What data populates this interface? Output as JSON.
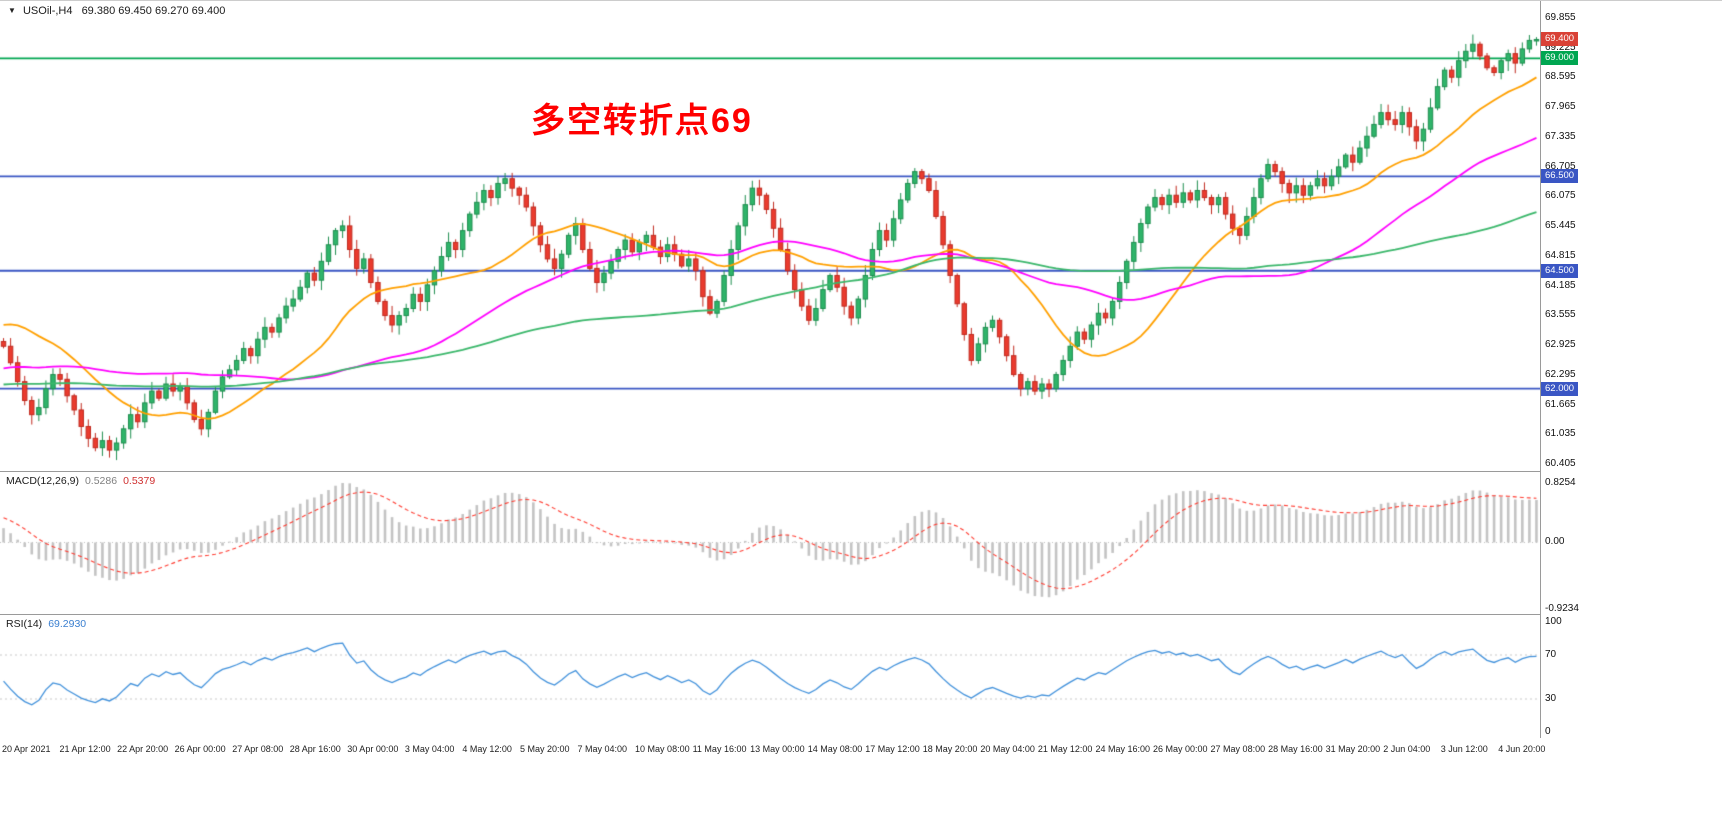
{
  "header": {
    "symbol": "USOil-,H4",
    "ohlc": "69.380 69.450 69.270 69.400",
    "dropdown_icon": "symbol-dropdown"
  },
  "annotation": {
    "text": "多空转折点69",
    "color": "#FF0000"
  },
  "colors": {
    "up": "#2FB46A",
    "up_border": "#1E8E4F",
    "down": "#EA3B2E",
    "down_border": "#C02A1F",
    "ma_fast": "#FFA000",
    "ma_mid": "#FF00FF",
    "ma_slow": "#3BB76B",
    "hline_green": "#00A651",
    "hline_blue": "#3A56C4",
    "price_badge_bg": "#D94136",
    "macd_hist": "#C4C4C4",
    "macd_signal": "#FF3B30",
    "rsi_line": "#4191DB",
    "level_dotted": "#C8C8C8"
  },
  "main_axis": {
    "min": 60.405,
    "max": 69.855,
    "ticks": [
      "69.855",
      "69.225",
      "68.595",
      "67.965",
      "67.335",
      "66.705",
      "66.075",
      "65.445",
      "64.815",
      "64.185",
      "63.555",
      "62.925",
      "62.295",
      "61.665",
      "61.035",
      "60.405"
    ]
  },
  "hlines": [
    {
      "value": 69.0,
      "label": "69.000",
      "color": "#00A651",
      "badge_bg": "#00A651"
    },
    {
      "value": 66.5,
      "label": "66.500",
      "color": "#3A56C4",
      "badge_bg": "#3A56C4"
    },
    {
      "value": 64.5,
      "label": "64.500",
      "color": "#3A56C4",
      "badge_bg": "#3A56C4"
    },
    {
      "value": 62.0,
      "label": "62.000",
      "color": "#3A56C4",
      "badge_bg": "#3A56C4"
    }
  ],
  "price_badge": {
    "value": 69.4,
    "label": "69.400",
    "bg": "#D94136"
  },
  "panels": {
    "macd": {
      "label": "MACD(12,26,9)",
      "value_main": "0.5286",
      "value_signal": "0.5379",
      "axis": [
        {
          "label": "0.8254",
          "value": 0.8254
        },
        {
          "label": "0.00",
          "value": 0
        },
        {
          "label": "-0.9234",
          "value": -0.9234
        }
      ],
      "range": {
        "min": -0.9234,
        "max": 0.8254
      }
    },
    "rsi": {
      "label": "RSI(14)",
      "value": "69.2930",
      "axis": [
        {
          "label": "100",
          "value": 100
        },
        {
          "label": "70",
          "value": 70
        },
        {
          "label": "30",
          "value": 30
        },
        {
          "label": "0",
          "value": 0
        }
      ],
      "levels": [
        70,
        30
      ],
      "range": {
        "min": 0,
        "max": 100
      }
    }
  },
  "time_axis": {
    "labels": [
      "20 Apr 2021",
      "21 Apr 12:00",
      "22 Apr 20:00",
      "26 Apr 00:00",
      "27 Apr 08:00",
      "28 Apr 16:00",
      "30 Apr 00:00",
      "3 May 04:00",
      "4 May 12:00",
      "5 May 20:00",
      "7 May 04:00",
      "10 May 08:00",
      "11 May 16:00",
      "13 May 00:00",
      "14 May 08:00",
      "17 May 12:00",
      "18 May 20:00",
      "20 May 04:00",
      "21 May 12:00",
      "24 May 16:00",
      "26 May 00:00",
      "27 May 08:00",
      "28 May 16:00",
      "31 May 20:00",
      "2 Jun 04:00",
      "3 Jun 12:00",
      "4 Jun 20:00"
    ]
  },
  "chart_data": {
    "type": "candlestick",
    "title": "USOil-,H4",
    "symbol": "USOil",
    "timeframe": "H4",
    "ylim": [
      60.405,
      69.855
    ],
    "last_bar": {
      "open": 69.38,
      "high": 69.45,
      "low": 69.27,
      "close": 69.4
    },
    "moving_averages": [
      {
        "period": 20,
        "color": "#FFA000"
      },
      {
        "period": 50,
        "color": "#FF00FF"
      },
      {
        "period": 100,
        "color": "#3BB76B"
      }
    ],
    "indicators": [
      {
        "type": "MACD",
        "fast": 12,
        "slow": 26,
        "signal": 9,
        "current": [
          0.5286,
          0.5379
        ]
      },
      {
        "type": "RSI",
        "period": 14,
        "current": 69.293
      }
    ],
    "prehistory": [
      61.5,
      61.65,
      61.8,
      61.7,
      61.55,
      61.4,
      61.55,
      61.75,
      61.9,
      61.8,
      61.65,
      61.5,
      61.6,
      61.8,
      61.95,
      61.85,
      61.7,
      61.55,
      61.65,
      61.85,
      62.0,
      61.9,
      61.75,
      61.6,
      61.7,
      61.9,
      62.05,
      61.95,
      61.8,
      61.65,
      61.55,
      61.7,
      61.85,
      61.75,
      61.6,
      61.45,
      61.55,
      61.7,
      61.85,
      61.95,
      61.8,
      61.65,
      61.75,
      61.9,
      62.0,
      61.9,
      61.75,
      61.85,
      61.95,
      61.85,
      61.7,
      61.55,
      61.65,
      61.8,
      61.9,
      61.75,
      61.6,
      61.7,
      61.85,
      61.95,
      61.85,
      61.7,
      61.8,
      61.95,
      62.05,
      61.9,
      61.75,
      61.85,
      62.0,
      61.9,
      61.75,
      61.65,
      61.8,
      61.95,
      61.85,
      61.7,
      61.8,
      61.9,
      62.0,
      61.9,
      62.1,
      62.35,
      62.6,
      62.85,
      63.1,
      63.35,
      63.6,
      63.85,
      64.05,
      64.2,
      64.1,
      63.95,
      63.8,
      63.65,
      63.5,
      63.4,
      63.3,
      63.2,
      63.1,
      63.0
    ],
    "closes": [
      62.9,
      62.55,
      62.15,
      61.75,
      61.45,
      61.6,
      62.0,
      62.3,
      62.2,
      61.85,
      61.55,
      61.2,
      60.95,
      60.75,
      60.9,
      60.7,
      60.85,
      61.15,
      61.45,
      61.3,
      61.7,
      61.95,
      61.8,
      62.1,
      61.95,
      62.05,
      61.7,
      61.35,
      61.15,
      61.5,
      61.95,
      62.25,
      62.4,
      62.6,
      62.85,
      62.7,
      63.05,
      63.3,
      63.2,
      63.5,
      63.75,
      63.9,
      64.15,
      64.45,
      64.3,
      64.7,
      65.05,
      65.35,
      65.45,
      64.95,
      64.55,
      64.75,
      64.25,
      63.85,
      63.55,
      63.35,
      63.55,
      63.7,
      64.0,
      63.85,
      64.2,
      64.5,
      64.8,
      65.1,
      64.95,
      65.35,
      65.7,
      65.95,
      66.2,
      66.05,
      66.35,
      66.45,
      66.25,
      66.1,
      65.85,
      65.45,
      65.05,
      64.75,
      64.55,
      64.85,
      65.25,
      65.5,
      64.95,
      64.55,
      64.25,
      64.45,
      64.7,
      64.95,
      65.15,
      64.9,
      65.1,
      65.25,
      65.0,
      64.8,
      65.05,
      64.85,
      64.6,
      64.75,
      64.5,
      63.95,
      63.6,
      63.85,
      64.4,
      64.95,
      65.45,
      65.9,
      66.25,
      66.1,
      65.8,
      65.4,
      64.95,
      64.5,
      64.1,
      63.75,
      63.45,
      63.7,
      64.1,
      64.4,
      64.15,
      63.75,
      63.5,
      63.9,
      64.4,
      64.95,
      65.35,
      65.15,
      65.6,
      66.0,
      66.35,
      66.6,
      66.45,
      66.2,
      65.65,
      65.05,
      64.4,
      63.8,
      63.15,
      62.6,
      62.95,
      63.3,
      63.45,
      63.1,
      62.7,
      62.3,
      62.0,
      62.15,
      61.95,
      62.1,
      62.0,
      62.3,
      62.6,
      62.9,
      63.2,
      63.05,
      63.35,
      63.6,
      63.5,
      63.85,
      64.25,
      64.7,
      65.1,
      65.5,
      65.85,
      66.05,
      65.9,
      66.1,
      65.95,
      66.15,
      66.0,
      66.2,
      66.05,
      65.9,
      66.05,
      65.7,
      65.4,
      65.25,
      65.65,
      66.05,
      66.45,
      66.75,
      66.6,
      66.35,
      66.15,
      66.3,
      66.1,
      66.3,
      66.45,
      66.3,
      66.5,
      66.7,
      66.95,
      66.8,
      67.1,
      67.35,
      67.6,
      67.85,
      67.7,
      67.6,
      67.85,
      67.55,
      67.25,
      67.5,
      67.95,
      68.4,
      68.75,
      68.6,
      68.95,
      69.15,
      69.3,
      69.05,
      68.8,
      68.7,
      68.95,
      69.1,
      68.9,
      69.2,
      69.38,
      69.4
    ]
  }
}
